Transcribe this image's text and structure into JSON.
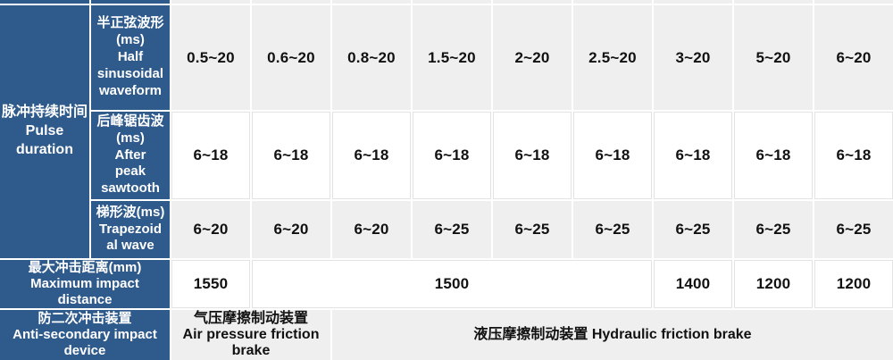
{
  "colors": {
    "header_blue": "#2F5A8C",
    "row_gray": "#EFEFEF",
    "row_white": "#FFFFFF",
    "gridline_white": "#FFFFFF",
    "value_text": "#111111",
    "header_text": "#FFFFFF"
  },
  "table": {
    "pulse_duration_label": "脉冲持续时间\nPulse\nduration",
    "rows": [
      {
        "header": "半正弦波形\n(ms)\nHalf\nsinusoidal\nwaveform",
        "values": [
          "0.5~20",
          "0.6~20",
          "0.8~20",
          "1.5~20",
          "2~20",
          "2.5~20",
          "3~20",
          "5~20",
          "6~20"
        ]
      },
      {
        "header": "后峰锯齿波\n(ms)\nAfter\npeak\nsawtooth",
        "values": [
          "6~18",
          "6~18",
          "6~18",
          "6~18",
          "6~18",
          "6~18",
          "6~18",
          "6~18",
          "6~18"
        ]
      },
      {
        "header": "梯形波(ms)\nTrapezoid\nal wave",
        "values": [
          "6~20",
          "6~20",
          "6~20",
          "6~25",
          "6~25",
          "6~25",
          "6~25",
          "6~25",
          "6~25"
        ]
      }
    ],
    "max_impact": {
      "header": "最大冲击距离(mm)\nMaximum impact\ndistance",
      "values": [
        "1550",
        "1500",
        "1400",
        "1200",
        "1200"
      ]
    },
    "anti_secondary": {
      "header": "防二次冲击装置\nAnti-secondary impact\ndevice",
      "air_brake": "气压摩擦制动装置\nAir pressure friction\nbrake",
      "hydraulic_brake": "液压摩擦制动装置 Hydraulic friction brake"
    }
  }
}
